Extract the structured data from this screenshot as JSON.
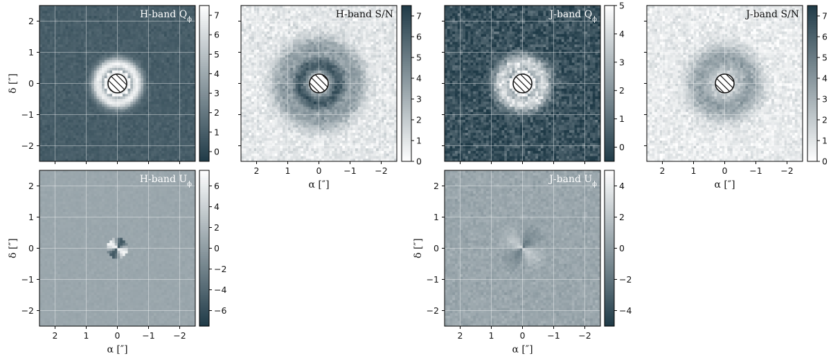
{
  "figure": {
    "axis_labels": {
      "x": "α [″]",
      "y": "δ [″]"
    }
  },
  "chart_data": [
    {
      "id": "h-q",
      "type": "heatmap",
      "title": "H-band Q",
      "title_sub": "ϕ",
      "colormap": "bone",
      "xlim": [
        2.5,
        -2.5
      ],
      "ylim": [
        -2.5,
        2.5
      ],
      "xticks": [
        2,
        1,
        0,
        -1,
        -2
      ],
      "yticks": [
        2,
        1,
        0,
        -1,
        -2
      ],
      "show_xticklabels": false,
      "show_yticklabels": true,
      "show_xlabel": false,
      "show_ylabel": true,
      "colorbar": {
        "range": [
          -0.5,
          7.5
        ],
        "ticks": [
          0,
          1,
          2,
          3,
          4,
          5,
          6,
          7
        ]
      },
      "mask": {
        "center": [
          0,
          0
        ],
        "radius": 0.3,
        "hatched": true
      },
      "grid": true,
      "structure": "ring"
    },
    {
      "id": "h-sn",
      "type": "heatmap",
      "title": "H-band S/N",
      "title_sub": "",
      "colormap": "reverse_bone",
      "xlim": [
        2.5,
        -2.5
      ],
      "ylim": [
        -2.5,
        2.5
      ],
      "xticks": [
        2,
        1,
        0,
        -1,
        -2
      ],
      "yticks": [
        2,
        1,
        0,
        -1,
        -2
      ],
      "show_xticklabels": true,
      "show_yticklabels": false,
      "show_xlabel": true,
      "show_ylabel": false,
      "colorbar": {
        "range": [
          0,
          7.5
        ],
        "ticks": [
          0,
          1,
          2,
          3,
          4,
          5,
          6,
          7
        ]
      },
      "mask": {
        "center": [
          0,
          0
        ],
        "radius": 0.3,
        "hatched": true
      },
      "grid": true,
      "structure": "ring_sn"
    },
    {
      "id": "j-q",
      "type": "heatmap",
      "title": "J-band Q",
      "title_sub": "ϕ",
      "colormap": "bone",
      "xlim": [
        2.5,
        -2.5
      ],
      "ylim": [
        -2.5,
        2.5
      ],
      "xticks": [
        2,
        1,
        0,
        -1,
        -2
      ],
      "yticks": [
        2,
        1,
        0,
        -1,
        -2
      ],
      "show_xticklabels": false,
      "show_yticklabels": false,
      "show_xlabel": false,
      "show_ylabel": false,
      "colorbar": {
        "range": [
          -0.5,
          5
        ],
        "ticks": [
          0,
          1,
          2,
          3,
          4,
          5
        ]
      },
      "mask": {
        "center": [
          0,
          0
        ],
        "radius": 0.3,
        "hatched": true
      },
      "grid": true,
      "structure": "ring_noisy"
    },
    {
      "id": "j-sn",
      "type": "heatmap",
      "title": "J-band S/N",
      "title_sub": "",
      "colormap": "reverse_bone",
      "xlim": [
        2.5,
        -2.5
      ],
      "ylim": [
        -2.5,
        2.5
      ],
      "xticks": [
        2,
        1,
        0,
        -1,
        -2
      ],
      "yticks": [
        2,
        1,
        0,
        -1,
        -2
      ],
      "show_xticklabels": true,
      "show_yticklabels": false,
      "show_xlabel": true,
      "show_ylabel": false,
      "colorbar": {
        "range": [
          0,
          7.5
        ],
        "ticks": [
          0,
          1,
          2,
          3,
          4,
          5,
          6,
          7
        ]
      },
      "mask": {
        "center": [
          0,
          0
        ],
        "radius": 0.3,
        "hatched": true
      },
      "grid": true,
      "structure": "sn_faint"
    },
    {
      "id": "h-u",
      "type": "heatmap",
      "title": "H-band U",
      "title_sub": "ϕ",
      "colormap": "bone",
      "xlim": [
        2.5,
        -2.5
      ],
      "ylim": [
        -2.5,
        2.5
      ],
      "xticks": [
        2,
        1,
        0,
        -1,
        -2
      ],
      "yticks": [
        2,
        1,
        0,
        -1,
        -2
      ],
      "show_xticklabels": true,
      "show_yticklabels": true,
      "show_xlabel": true,
      "show_ylabel": true,
      "colorbar": {
        "range": [
          -7.5,
          7.5
        ],
        "ticks": [
          -6,
          -4,
          -2,
          0,
          2,
          4,
          6
        ]
      },
      "mask": null,
      "grid": true,
      "structure": "u_small"
    },
    {
      "id": "j-u",
      "type": "heatmap",
      "title": "J-band U",
      "title_sub": "ϕ",
      "colormap": "bone",
      "xlim": [
        2.5,
        -2.5
      ],
      "ylim": [
        -2.5,
        2.5
      ],
      "xticks": [
        2,
        1,
        0,
        -1,
        -2
      ],
      "yticks": [
        2,
        1,
        0,
        -1,
        -2
      ],
      "show_xticklabels": true,
      "show_yticklabels": true,
      "show_xlabel": true,
      "show_ylabel": true,
      "colorbar": {
        "range": [
          -5,
          5
        ],
        "ticks": [
          -4,
          -2,
          0,
          2,
          4
        ]
      },
      "mask": null,
      "grid": true,
      "structure": "u_large"
    }
  ]
}
